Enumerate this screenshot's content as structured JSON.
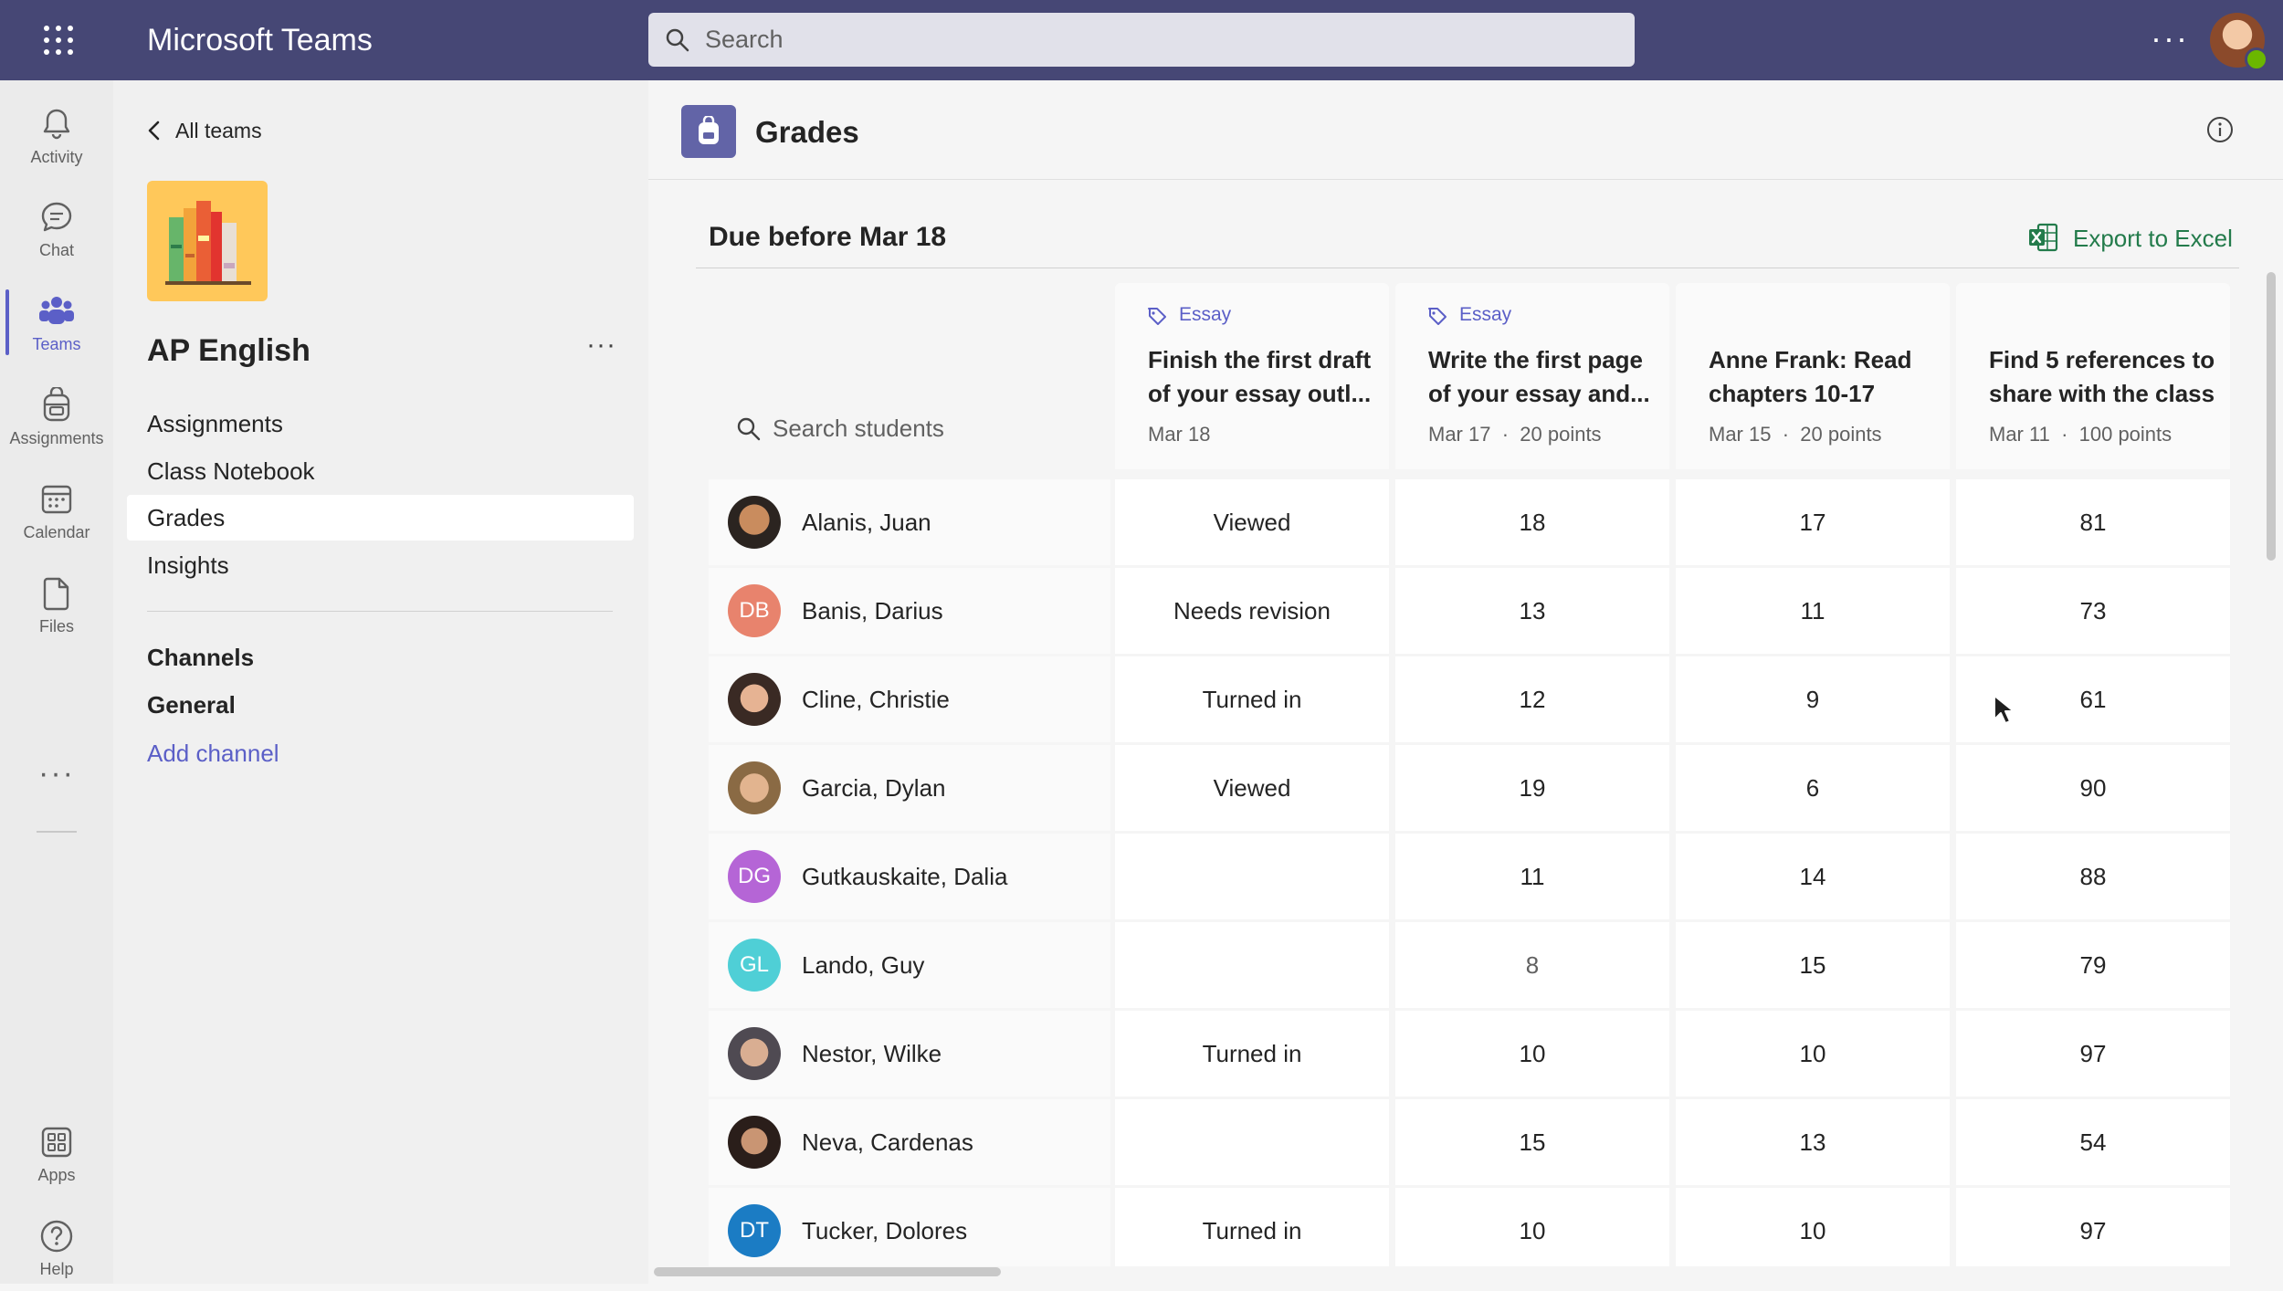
{
  "app": {
    "title": "Microsoft Teams"
  },
  "search": {
    "placeholder": "Search"
  },
  "rail": {
    "items": [
      {
        "label": "Activity",
        "icon": "bell-icon"
      },
      {
        "label": "Chat",
        "icon": "chat-icon"
      },
      {
        "label": "Teams",
        "icon": "teams-icon",
        "active": true
      },
      {
        "label": "Assignments",
        "icon": "backpack-icon"
      },
      {
        "label": "Calendar",
        "icon": "calendar-icon"
      },
      {
        "label": "Files",
        "icon": "file-icon"
      }
    ],
    "bottom": [
      {
        "label": "Apps",
        "icon": "apps-icon"
      },
      {
        "label": "Help",
        "icon": "help-icon"
      }
    ]
  },
  "team_panel": {
    "back_label": "All teams",
    "team_name": "AP English",
    "nav": [
      "Assignments",
      "Class Notebook",
      "Grades",
      "Insights"
    ],
    "selected_nav": "Grades",
    "channels_heading": "Channels",
    "channels": [
      "General"
    ],
    "add_channel": "Add channel"
  },
  "main": {
    "tab_title": "Grades",
    "section_title": "Due before Mar 18",
    "export_label": "Export to Excel",
    "search_students": "Search students",
    "columns": [
      {
        "tag": "Essay",
        "title": "Finish the first draft of your essay outl...",
        "date": "Mar 18",
        "points": ""
      },
      {
        "tag": "Essay",
        "title": "Write the first page of your essay and...",
        "date": "Mar 17",
        "points": "20 points"
      },
      {
        "tag": "",
        "title": "Anne Frank: Read chapters 10-17",
        "date": "Mar 15",
        "points": "20 points"
      },
      {
        "tag": "",
        "title": "Find 5 references to share with the class",
        "date": "Mar 11",
        "points": "100 points"
      }
    ],
    "students": [
      {
        "name": "Alanis, Juan",
        "initials": "",
        "color": "#8a5a3c",
        "values": [
          "Viewed",
          "18",
          "17",
          "81"
        ]
      },
      {
        "name": "Banis, Darius",
        "initials": "DB",
        "color": "#e8836d",
        "values": [
          "Needs revision",
          "13",
          "11",
          "73"
        ]
      },
      {
        "name": "Cline, Christie",
        "initials": "",
        "color": "#6b4a3a",
        "values": [
          "Turned in",
          "12",
          "9",
          "61"
        ]
      },
      {
        "name": "Garcia, Dylan",
        "initials": "",
        "color": "#b07a55",
        "values": [
          "Viewed",
          "19",
          "6",
          "90"
        ]
      },
      {
        "name": "Gutkauskaite, Dalia",
        "initials": "DG",
        "color": "#b565d6",
        "values": [
          "",
          "11",
          "14",
          "88"
        ]
      },
      {
        "name": "Lando, Guy",
        "initials": "GL",
        "color": "#4fcfd6",
        "values": [
          "",
          "8",
          "15",
          "79"
        ]
      },
      {
        "name": "Nestor, Wilke",
        "initials": "",
        "color": "#4f4a52",
        "values": [
          "Turned in",
          "10",
          "10",
          "97"
        ]
      },
      {
        "name": "Neva, Cardenas",
        "initials": "",
        "color": "#3a2c28",
        "values": [
          "",
          "15",
          "13",
          "54"
        ]
      },
      {
        "name": "Tucker, Dolores",
        "initials": "DT",
        "color": "#1b7cc4",
        "values": [
          "Turned in",
          "10",
          "10",
          "97"
        ]
      }
    ]
  },
  "colors": {
    "brand": "#464775",
    "accent": "#5b5fc7",
    "excel": "#237b4b"
  }
}
